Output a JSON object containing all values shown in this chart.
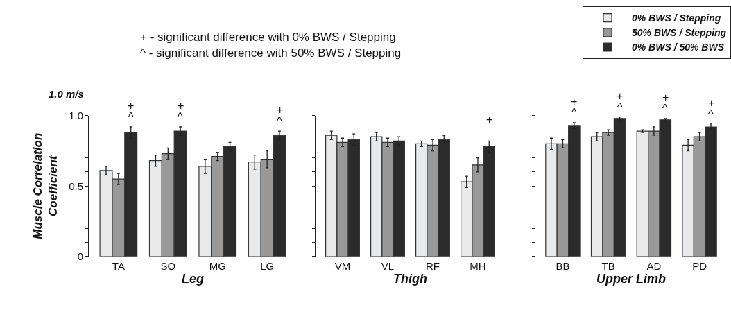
{
  "chart_data": [
    {
      "type": "bar",
      "xlabel": "Leg",
      "ylabel": "Muscle Correlation\nCoefficient",
      "categories": [
        "TA",
        "SO",
        "MG",
        "LG"
      ],
      "series": [
        {
          "color": "#e8e9ea",
          "values": [
            0.61,
            0.68,
            0.64,
            0.67
          ],
          "errors": [
            0.03,
            0.04,
            0.05,
            0.05
          ]
        },
        {
          "color": "#999999",
          "values": [
            0.55,
            0.73,
            0.71,
            0.69
          ],
          "errors": [
            0.04,
            0.04,
            0.03,
            0.06
          ]
        },
        {
          "color": "#2b2b2b",
          "values": [
            0.88,
            0.89,
            0.78,
            0.86
          ],
          "errors": [
            0.04,
            0.03,
            0.03,
            0.03
          ]
        }
      ],
      "ylim": [
        0,
        1.0
      ],
      "yticks": [
        0,
        {
          "value": 0.1,
          "label": null
        },
        {
          "value": 0.2,
          "label": null
        },
        {
          "value": 0.3,
          "label": null
        },
        {
          "value": 0.4,
          "label": null
        },
        0.5,
        {
          "value": 0.6,
          "label": null
        },
        {
          "value": 0.7,
          "label": null
        },
        {
          "value": 0.8,
          "label": null
        },
        {
          "value": 0.9,
          "label": null
        },
        {
          "value": 1.0,
          "label": "1.0"
        }
      ],
      "legend": false,
      "annotations": [
        "1.0 m/s",
        "+ - significant difference with 0% BWS / Stepping",
        "^ - significant difference with 50% BWS / Stepping",
        "+",
        "^",
        "+",
        "^",
        "+",
        "^"
      ]
    },
    {
      "type": "bar",
      "xlabel": "Thigh",
      "categories": [
        "VM",
        "VL",
        "RF",
        "MH"
      ],
      "series": [
        {
          "color": "#e8e9ea",
          "values": [
            0.86,
            0.85,
            0.8,
            0.53
          ],
          "errors": [
            0.03,
            0.03,
            0.02,
            0.04
          ]
        },
        {
          "color": "#999999",
          "values": [
            0.81,
            0.81,
            0.79,
            0.65
          ],
          "errors": [
            0.03,
            0.03,
            0.04,
            0.05
          ]
        },
        {
          "color": "#2b2b2b",
          "values": [
            0.83,
            0.82,
            0.83,
            0.78
          ],
          "errors": [
            0.04,
            0.03,
            0.03,
            0.04
          ]
        }
      ],
      "ylim": [
        0,
        1.0
      ],
      "yticks": [
        0,
        0.1,
        0.2,
        0.3,
        0.4,
        0.5,
        0.6,
        0.7,
        0.8,
        0.9,
        1.0
      ],
      "tick_labels": "x",
      "legend": false,
      "annotations": [
        "+"
      ]
    },
    {
      "type": "bar",
      "xlabel": "Upper Limb",
      "categories": [
        "BB",
        "TB",
        "AD",
        "PD"
      ],
      "series": [
        {
          "name": "0% BWS / Stepping",
          "color": "#e8e9ea",
          "values": [
            0.8,
            0.85,
            0.89,
            0.79
          ],
          "errors": [
            0.04,
            0.03,
            0.01,
            0.04
          ]
        },
        {
          "name": "50% BWS / Stepping",
          "color": "#999999",
          "values": [
            0.8,
            0.88,
            0.89,
            0.85
          ],
          "errors": [
            0.03,
            0.02,
            0.03,
            0.03
          ]
        },
        {
          "name": "0% BWS / 50% BWS",
          "color": "#2b2b2b",
          "values": [
            0.93,
            0.98,
            0.97,
            0.92
          ],
          "errors": [
            0.02,
            0.01,
            0.01,
            0.02
          ]
        }
      ],
      "ylim": [
        0,
        1.0
      ],
      "yticks": [
        0,
        0.1,
        0.2,
        0.3,
        0.4,
        0.5,
        0.6,
        0.7,
        0.8,
        0.9,
        1.0
      ],
      "tick_labels": "x",
      "legend": "top right",
      "annotations": [
        "+",
        "^",
        "+",
        "^",
        "+",
        "^",
        "+",
        "^"
      ]
    }
  ]
}
